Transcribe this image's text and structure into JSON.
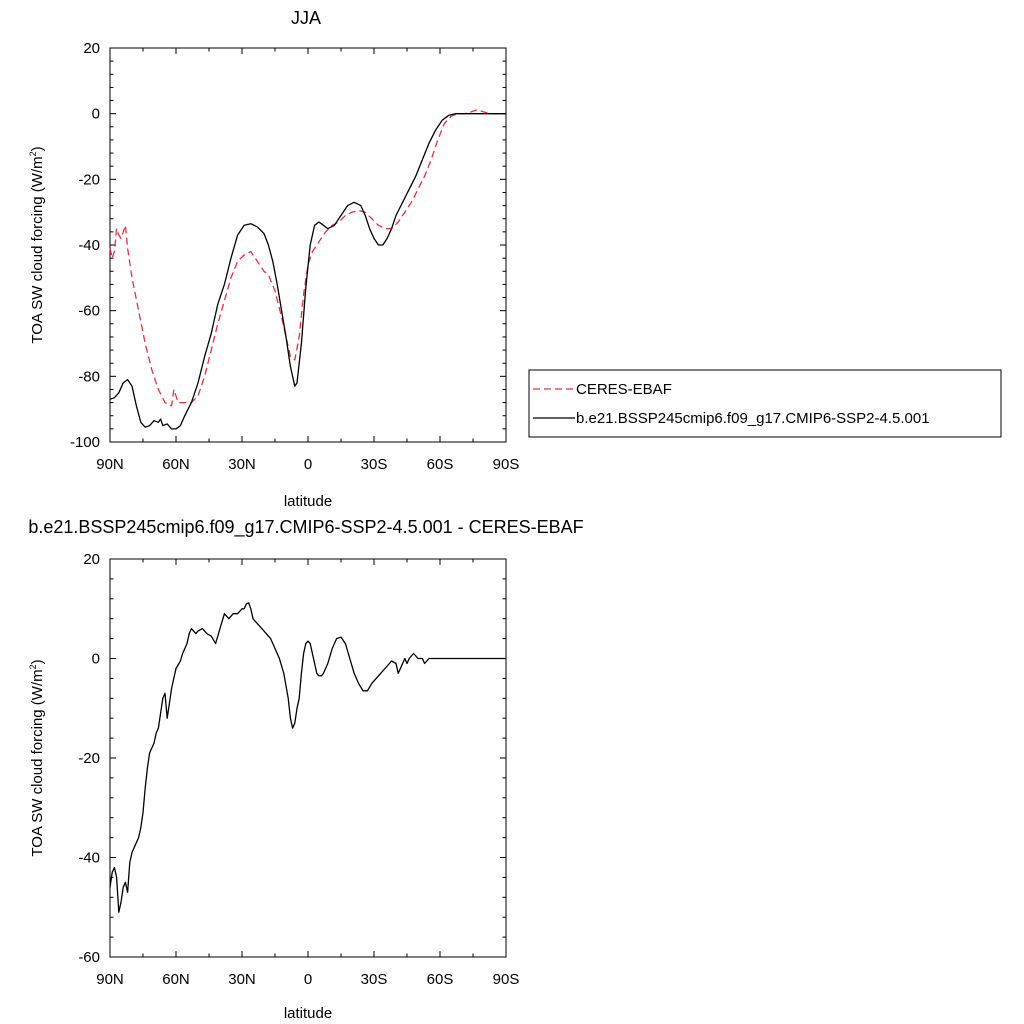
{
  "chart_data": [
    {
      "type": "line",
      "title": "JJA",
      "xlabel": "latitude",
      "ylabel_main": "TOA SW cloud forcing (W/m",
      "ylabel_sup": "2",
      "ylabel_tail": ")",
      "xlim": [
        -90,
        90
      ],
      "ylim": [
        -100,
        20
      ],
      "x_ticks": [
        -90,
        -60,
        -30,
        0,
        30,
        60,
        90
      ],
      "x_tick_labels": [
        "90N",
        "60N",
        "30N",
        "0",
        "30S",
        "60S",
        "90S"
      ],
      "y_ticks": [
        -100,
        -80,
        -60,
        -40,
        -20,
        0,
        20
      ],
      "y_tick_labels": [
        "-100",
        "-80",
        "-60",
        "-40",
        "-20",
        "0",
        "20"
      ],
      "legend_position": "right",
      "series": [
        {
          "name": "CERES-EBAF",
          "color": "#e8303a",
          "dash": "dashed",
          "points": [
            [
              -90,
              -41
            ],
            [
              -89,
              -44
            ],
            [
              -88,
              -42
            ],
            [
              -87,
              -35
            ],
            [
              -86,
              -37
            ],
            [
              -85,
              -38
            ],
            [
              -84,
              -36
            ],
            [
              -83,
              -34
            ],
            [
              -82,
              -41
            ],
            [
              -80,
              -50
            ],
            [
              -77,
              -60
            ],
            [
              -74,
              -70
            ],
            [
              -71,
              -78
            ],
            [
              -68,
              -84
            ],
            [
              -65,
              -88
            ],
            [
              -62,
              -89
            ],
            [
              -61,
              -84
            ],
            [
              -59,
              -88
            ],
            [
              -56,
              -88
            ],
            [
              -53,
              -88
            ],
            [
              -50,
              -86
            ],
            [
              -47,
              -80
            ],
            [
              -44,
              -72
            ],
            [
              -41,
              -64
            ],
            [
              -38,
              -57
            ],
            [
              -35,
              -50
            ],
            [
              -32,
              -45
            ],
            [
              -29,
              -43
            ],
            [
              -26,
              -42
            ],
            [
              -23,
              -45
            ],
            [
              -20,
              -48
            ],
            [
              -18,
              -49
            ],
            [
              -15,
              -54
            ],
            [
              -12,
              -62
            ],
            [
              -10,
              -68
            ],
            [
              -8,
              -74
            ],
            [
              -6,
              -75
            ],
            [
              -4,
              -68
            ],
            [
              -2,
              -55
            ],
            [
              0,
              -46
            ],
            [
              2,
              -42
            ],
            [
              5,
              -39
            ],
            [
              8,
              -36
            ],
            [
              11,
              -34
            ],
            [
              14,
              -33
            ],
            [
              17,
              -31
            ],
            [
              20,
              -30
            ],
            [
              23,
              -29.5
            ],
            [
              26,
              -30
            ],
            [
              29,
              -32
            ],
            [
              32,
              -34
            ],
            [
              35,
              -35
            ],
            [
              38,
              -35
            ],
            [
              41,
              -33
            ],
            [
              44,
              -30
            ],
            [
              47,
              -27
            ],
            [
              50,
              -23
            ],
            [
              53,
              -19
            ],
            [
              56,
              -14
            ],
            [
              59,
              -8
            ],
            [
              62,
              -3
            ],
            [
              65,
              -0.8
            ],
            [
              68,
              0
            ],
            [
              71,
              0
            ],
            [
              74,
              0.5
            ],
            [
              77,
              1.2
            ],
            [
              80,
              0.5
            ],
            [
              83,
              0
            ],
            [
              86,
              0
            ],
            [
              90,
              0
            ]
          ]
        },
        {
          "name": "b.e21.BSSP245cmip6.f09_g17.CMIP6-SSP2-4.5.001",
          "color": "#000000",
          "dash": "solid",
          "points": [
            [
              -90,
              -87
            ],
            [
              -88,
              -86.5
            ],
            [
              -86,
              -85
            ],
            [
              -84,
              -82
            ],
            [
              -82,
              -81
            ],
            [
              -80,
              -83
            ],
            [
              -78,
              -89
            ],
            [
              -76,
              -94
            ],
            [
              -74,
              -95.5
            ],
            [
              -72,
              -95
            ],
            [
              -70,
              -93.5
            ],
            [
              -68,
              -94
            ],
            [
              -67,
              -93
            ],
            [
              -66,
              -95
            ],
            [
              -64,
              -94.5
            ],
            [
              -62,
              -96
            ],
            [
              -60,
              -96
            ],
            [
              -58,
              -95
            ],
            [
              -56,
              -92
            ],
            [
              -53,
              -88
            ],
            [
              -50,
              -82
            ],
            [
              -47,
              -74
            ],
            [
              -44,
              -67
            ],
            [
              -41,
              -58
            ],
            [
              -38,
              -52
            ],
            [
              -35,
              -44
            ],
            [
              -32,
              -37
            ],
            [
              -29,
              -34
            ],
            [
              -26,
              -33.5
            ],
            [
              -23,
              -34.5
            ],
            [
              -20,
              -36.5
            ],
            [
              -18,
              -40
            ],
            [
              -16,
              -45
            ],
            [
              -14,
              -52
            ],
            [
              -12,
              -60
            ],
            [
              -10,
              -68
            ],
            [
              -8,
              -77
            ],
            [
              -6,
              -83
            ],
            [
              -5,
              -82
            ],
            [
              -3,
              -70
            ],
            [
              -1,
              -53
            ],
            [
              1,
              -40
            ],
            [
              3,
              -34
            ],
            [
              5,
              -33
            ],
            [
              7,
              -34
            ],
            [
              9,
              -35
            ],
            [
              12,
              -34
            ],
            [
              15,
              -31
            ],
            [
              18,
              -28
            ],
            [
              21,
              -27
            ],
            [
              24,
              -28
            ],
            [
              26,
              -31
            ],
            [
              28,
              -35
            ],
            [
              30,
              -38
            ],
            [
              32,
              -40
            ],
            [
              34,
              -40
            ],
            [
              36,
              -38
            ],
            [
              38,
              -35
            ],
            [
              40,
              -31
            ],
            [
              43,
              -27
            ],
            [
              46,
              -23
            ],
            [
              49,
              -19
            ],
            [
              52,
              -14
            ],
            [
              55,
              -9
            ],
            [
              58,
              -5
            ],
            [
              61,
              -2
            ],
            [
              64,
              -0.5
            ],
            [
              67,
              0
            ],
            [
              70,
              0
            ],
            [
              75,
              0
            ],
            [
              80,
              0
            ],
            [
              85,
              0
            ],
            [
              90,
              0
            ]
          ]
        }
      ]
    },
    {
      "type": "line",
      "title": "b.e21.BSSP245cmip6.f09_g17.CMIP6-SSP2-4.5.001 - CERES-EBAF",
      "xlabel": "latitude",
      "ylabel_main": "TOA SW cloud forcing (W/m",
      "ylabel_sup": "2",
      "ylabel_tail": ")",
      "xlim": [
        -90,
        90
      ],
      "ylim": [
        -60,
        20
      ],
      "x_ticks": [
        -90,
        -60,
        -30,
        0,
        30,
        60,
        90
      ],
      "x_tick_labels": [
        "90N",
        "60N",
        "30N",
        "0",
        "30S",
        "60S",
        "90S"
      ],
      "y_ticks": [
        -60,
        -40,
        -20,
        0,
        20
      ],
      "y_tick_labels": [
        "-60",
        "-40",
        "-20",
        "0",
        "20"
      ],
      "series": [
        {
          "color": "#000000",
          "dash": "solid",
          "points": [
            [
              -90,
              -46
            ],
            [
              -89,
              -43
            ],
            [
              -88,
              -42
            ],
            [
              -87,
              -44
            ],
            [
              -86,
              -51
            ],
            [
              -85,
              -49
            ],
            [
              -84,
              -46
            ],
            [
              -83,
              -45
            ],
            [
              -82,
              -47
            ],
            [
              -81,
              -41
            ],
            [
              -80,
              -39
            ],
            [
              -79,
              -38
            ],
            [
              -77,
              -36
            ],
            [
              -76,
              -34
            ],
            [
              -75,
              -31
            ],
            [
              -74,
              -26
            ],
            [
              -73,
              -22
            ],
            [
              -72,
              -19
            ],
            [
              -70,
              -17
            ],
            [
              -69,
              -15
            ],
            [
              -68,
              -14
            ],
            [
              -67,
              -11
            ],
            [
              -66,
              -8
            ],
            [
              -65,
              -7
            ],
            [
              -64,
              -12
            ],
            [
              -63,
              -9
            ],
            [
              -62,
              -6
            ],
            [
              -61,
              -4
            ],
            [
              -60,
              -2
            ],
            [
              -58,
              -0.5
            ],
            [
              -57,
              1
            ],
            [
              -55,
              3
            ],
            [
              -54,
              5
            ],
            [
              -53,
              6
            ],
            [
              -51,
              5
            ],
            [
              -50,
              5.5
            ],
            [
              -48,
              6
            ],
            [
              -46,
              5
            ],
            [
              -44,
              4.5
            ],
            [
              -42,
              3
            ],
            [
              -40,
              6
            ],
            [
              -38,
              9
            ],
            [
              -36,
              8
            ],
            [
              -34,
              9
            ],
            [
              -32,
              9
            ],
            [
              -30,
              10
            ],
            [
              -29,
              10
            ],
            [
              -28,
              11
            ],
            [
              -27,
              11.2
            ],
            [
              -26,
              10
            ],
            [
              -25,
              8
            ],
            [
              -23,
              7
            ],
            [
              -21,
              6
            ],
            [
              -19,
              5
            ],
            [
              -17,
              4
            ],
            [
              -15,
              2
            ],
            [
              -13,
              0
            ],
            [
              -11,
              -3
            ],
            [
              -9,
              -8
            ],
            [
              -8,
              -12
            ],
            [
              -7,
              -14
            ],
            [
              -6,
              -13
            ],
            [
              -5,
              -10
            ],
            [
              -4,
              -8
            ],
            [
              -3,
              -3
            ],
            [
              -2,
              1
            ],
            [
              -1,
              3
            ],
            [
              0,
              3.5
            ],
            [
              1,
              3
            ],
            [
              2,
              1
            ],
            [
              3,
              -1
            ],
            [
              4,
              -3
            ],
            [
              5,
              -3.5
            ],
            [
              6,
              -3.5
            ],
            [
              7,
              -3
            ],
            [
              9,
              -1
            ],
            [
              11,
              2
            ],
            [
              13,
              4
            ],
            [
              15,
              4.3
            ],
            [
              17,
              3
            ],
            [
              19,
              0
            ],
            [
              21,
              -3
            ],
            [
              23,
              -5
            ],
            [
              25,
              -6.5
            ],
            [
              27,
              -6.5
            ],
            [
              29,
              -5
            ],
            [
              31,
              -4
            ],
            [
              33,
              -3
            ],
            [
              35,
              -2
            ],
            [
              37,
              -1
            ],
            [
              38,
              -0.5
            ],
            [
              40,
              -1
            ],
            [
              41,
              -3
            ],
            [
              42,
              -2
            ],
            [
              43,
              -1
            ],
            [
              44,
              0
            ],
            [
              45,
              -1
            ],
            [
              46,
              0
            ],
            [
              48,
              1
            ],
            [
              50,
              0
            ],
            [
              52,
              0
            ],
            [
              53,
              -1
            ],
            [
              55,
              0
            ],
            [
              57,
              0
            ],
            [
              60,
              0
            ],
            [
              65,
              0
            ],
            [
              70,
              0
            ],
            [
              75,
              0
            ],
            [
              80,
              0
            ],
            [
              85,
              0
            ],
            [
              90,
              0
            ]
          ]
        }
      ]
    }
  ]
}
